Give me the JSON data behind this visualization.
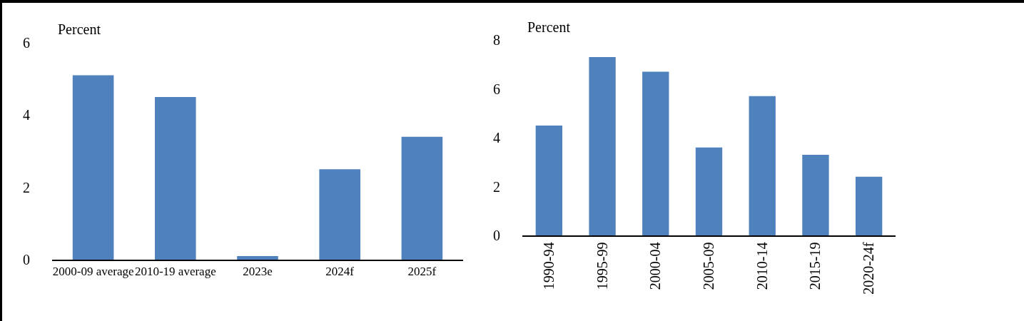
{
  "chart_data": [
    {
      "type": "bar",
      "ylabel": "Percent",
      "categories": [
        "2000-09 average",
        "2010-19 average",
        "2023e",
        "2024f",
        "2025f"
      ],
      "values": [
        5.1,
        4.5,
        0.1,
        2.5,
        3.4
      ],
      "color": "#4f81bd",
      "ylim": [
        0,
        6
      ],
      "yticks": [
        0,
        2,
        4,
        6
      ],
      "grid": false,
      "legend": false
    },
    {
      "type": "bar",
      "ylabel": "Percent",
      "categories": [
        "1990-94",
        "1995-99",
        "2000-04",
        "2005-09",
        "2010-14",
        "2015-19",
        "2020-24f"
      ],
      "values": [
        4.5,
        7.3,
        6.7,
        3.6,
        5.7,
        3.3,
        2.4
      ],
      "color": "#4f81bd",
      "ylim": [
        0,
        8
      ],
      "yticks": [
        0,
        2,
        4,
        6,
        8
      ],
      "grid": false,
      "legend": false
    }
  ]
}
